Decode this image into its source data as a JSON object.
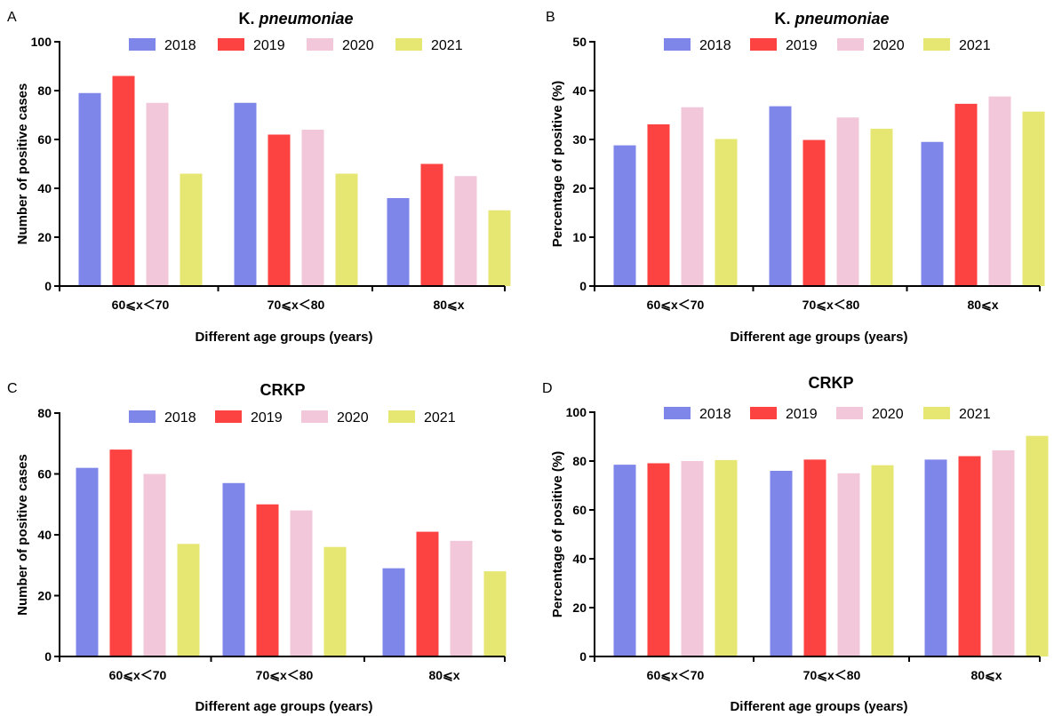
{
  "chart_data": [
    {
      "panel": "A",
      "type": "bar",
      "title": "K. pneumoniae",
      "title_parts": [
        "K. ",
        "pneumoniae"
      ],
      "xlabel": "Different age groups (years)",
      "ylabel": "Number of positive cases",
      "categories": [
        "60⩽x＜70",
        "70⩽x＜80",
        "80⩽x"
      ],
      "ylim": [
        0,
        100
      ],
      "yticks": [
        0,
        20,
        40,
        60,
        80,
        100
      ],
      "legend_position": "top",
      "series": [
        {
          "name": "2018",
          "values": [
            79,
            75,
            36
          ]
        },
        {
          "name": "2019",
          "values": [
            86,
            62,
            50
          ]
        },
        {
          "name": "2020",
          "values": [
            75,
            64,
            45
          ]
        },
        {
          "name": "2021",
          "values": [
            46,
            46,
            31
          ]
        }
      ]
    },
    {
      "panel": "B",
      "type": "bar",
      "title": "K. pneumoniae",
      "title_parts": [
        "K. ",
        "pneumoniae"
      ],
      "xlabel": "Different age groups (years)",
      "ylabel": "Percentage of positive (%)",
      "categories": [
        "60⩽x＜70",
        "70⩽x＜80",
        "80⩽x"
      ],
      "ylim": [
        0,
        50
      ],
      "yticks": [
        0,
        10,
        20,
        30,
        40,
        50
      ],
      "legend_position": "top",
      "series": [
        {
          "name": "2018",
          "values": [
            28.8,
            36.8,
            29.5
          ]
        },
        {
          "name": "2019",
          "values": [
            33.1,
            29.9,
            37.3
          ]
        },
        {
          "name": "2020",
          "values": [
            36.6,
            34.5,
            38.8
          ]
        },
        {
          "name": "2021",
          "values": [
            30.1,
            32.2,
            35.7
          ]
        }
      ]
    },
    {
      "panel": "C",
      "type": "bar",
      "title": "CRKP",
      "title_parts": [
        "CRKP",
        ""
      ],
      "xlabel": "Different age groups (years)",
      "ylabel": "Number of positive cases",
      "categories": [
        "60⩽x＜70",
        "70⩽x＜80",
        "80⩽x"
      ],
      "ylim": [
        0,
        80
      ],
      "yticks": [
        0,
        20,
        40,
        60,
        80
      ],
      "legend_position": "top",
      "series": [
        {
          "name": "2018",
          "values": [
            62,
            57,
            29
          ]
        },
        {
          "name": "2019",
          "values": [
            68,
            50,
            41
          ]
        },
        {
          "name": "2020",
          "values": [
            60,
            48,
            38
          ]
        },
        {
          "name": "2021",
          "values": [
            37,
            36,
            28
          ]
        }
      ]
    },
    {
      "panel": "D",
      "type": "bar",
      "title": "CRKP",
      "title_parts": [
        "CRKP",
        ""
      ],
      "xlabel": "Different age groups (years)",
      "ylabel": "Percentage of positive (%)",
      "categories": [
        "60⩽x＜70",
        "70⩽x＜80",
        "80⩽x"
      ],
      "ylim": [
        0,
        100
      ],
      "yticks": [
        0,
        20,
        40,
        60,
        80,
        100
      ],
      "legend_position": "top",
      "series": [
        {
          "name": "2018",
          "values": [
            78.5,
            76,
            80.6
          ]
        },
        {
          "name": "2019",
          "values": [
            79.1,
            80.6,
            82
          ]
        },
        {
          "name": "2020",
          "values": [
            80,
            75,
            84.4
          ]
        },
        {
          "name": "2021",
          "values": [
            80.4,
            78.3,
            90.3
          ]
        }
      ]
    }
  ],
  "colors": {
    "2018": "#7f86ea",
    "2019": "#fd4242",
    "2020": "#f2c7da",
    "2021": "#e6e673",
    "axis": "#000000"
  }
}
